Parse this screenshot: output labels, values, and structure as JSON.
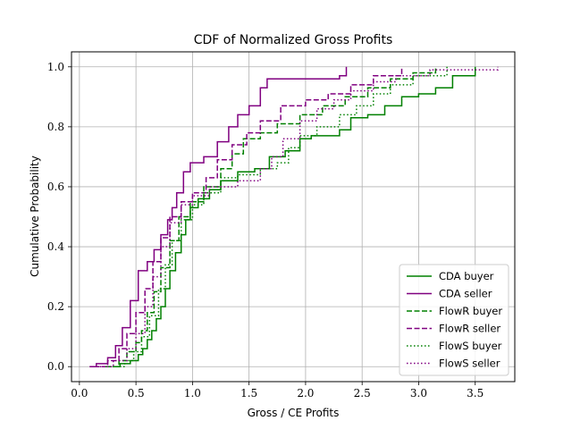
{
  "chart_data": {
    "type": "line",
    "step": true,
    "title": "CDF of Normalized Gross Profits",
    "xlabel": "Gross / CE Profits",
    "ylabel": "Cumulative Probability",
    "xlim": [
      -0.07,
      3.85
    ],
    "ylim": [
      -0.05,
      1.05
    ],
    "x_ticks": [
      0.0,
      0.5,
      1.0,
      1.5,
      2.0,
      2.5,
      3.0,
      3.5
    ],
    "x_tick_labels": [
      "0.0",
      "0.5",
      "1.0",
      "1.5",
      "2.0",
      "2.5",
      "3.0",
      "3.5"
    ],
    "y_ticks": [
      0.0,
      0.2,
      0.4,
      0.6,
      0.8,
      1.0
    ],
    "y_tick_labels": [
      "0.0",
      "0.2",
      "0.4",
      "0.6",
      "0.8",
      "1.0"
    ],
    "grid": true,
    "legend_position": "lower right",
    "series": [
      {
        "name": "CDA buyer",
        "color": "#008000",
        "dash": "solid",
        "points": [
          [
            0.33,
            0.0
          ],
          [
            0.36,
            0.01
          ],
          [
            0.45,
            0.02
          ],
          [
            0.52,
            0.04
          ],
          [
            0.56,
            0.06
          ],
          [
            0.6,
            0.09
          ],
          [
            0.64,
            0.12
          ],
          [
            0.68,
            0.16
          ],
          [
            0.72,
            0.2
          ],
          [
            0.76,
            0.26
          ],
          [
            0.8,
            0.32
          ],
          [
            0.85,
            0.38
          ],
          [
            0.9,
            0.44
          ],
          [
            0.94,
            0.49
          ],
          [
            0.98,
            0.53
          ],
          [
            1.05,
            0.56
          ],
          [
            1.15,
            0.59
          ],
          [
            1.25,
            0.62
          ],
          [
            1.4,
            0.65
          ],
          [
            1.55,
            0.66
          ],
          [
            1.68,
            0.7
          ],
          [
            1.82,
            0.72
          ],
          [
            1.95,
            0.76
          ],
          [
            2.05,
            0.77
          ],
          [
            2.3,
            0.79
          ],
          [
            2.4,
            0.83
          ],
          [
            2.55,
            0.84
          ],
          [
            2.7,
            0.87
          ],
          [
            2.85,
            0.9
          ],
          [
            3.0,
            0.91
          ],
          [
            3.15,
            0.93
          ],
          [
            3.3,
            0.97
          ],
          [
            3.5,
            1.0
          ]
        ]
      },
      {
        "name": "CDA seller",
        "color": "#800080",
        "dash": "solid",
        "points": [
          [
            0.09,
            0.0
          ],
          [
            0.15,
            0.01
          ],
          [
            0.25,
            0.03
          ],
          [
            0.32,
            0.07
          ],
          [
            0.38,
            0.13
          ],
          [
            0.45,
            0.22
          ],
          [
            0.52,
            0.32
          ],
          [
            0.6,
            0.35
          ],
          [
            0.66,
            0.39
          ],
          [
            0.72,
            0.44
          ],
          [
            0.78,
            0.49
          ],
          [
            0.82,
            0.53
          ],
          [
            0.86,
            0.58
          ],
          [
            0.92,
            0.65
          ],
          [
            0.98,
            0.68
          ],
          [
            1.1,
            0.7
          ],
          [
            1.22,
            0.75
          ],
          [
            1.32,
            0.8
          ],
          [
            1.4,
            0.84
          ],
          [
            1.5,
            0.87
          ],
          [
            1.6,
            0.93
          ],
          [
            1.66,
            0.96
          ],
          [
            2.3,
            0.97
          ],
          [
            2.36,
            1.0
          ]
        ]
      },
      {
        "name": "FlowR buyer",
        "color": "#008000",
        "dash": "dashed",
        "points": [
          [
            0.23,
            0.0
          ],
          [
            0.35,
            0.02
          ],
          [
            0.42,
            0.05
          ],
          [
            0.5,
            0.08
          ],
          [
            0.55,
            0.12
          ],
          [
            0.6,
            0.18
          ],
          [
            0.66,
            0.25
          ],
          [
            0.72,
            0.33
          ],
          [
            0.8,
            0.42
          ],
          [
            0.88,
            0.5
          ],
          [
            0.98,
            0.55
          ],
          [
            1.1,
            0.6
          ],
          [
            1.25,
            0.66
          ],
          [
            1.35,
            0.71
          ],
          [
            1.45,
            0.76
          ],
          [
            1.6,
            0.78
          ],
          [
            1.75,
            0.81
          ],
          [
            1.95,
            0.84
          ],
          [
            2.15,
            0.87
          ],
          [
            2.35,
            0.9
          ],
          [
            2.55,
            0.93
          ],
          [
            2.75,
            0.96
          ],
          [
            2.95,
            0.98
          ],
          [
            3.15,
            1.0
          ]
        ]
      },
      {
        "name": "FlowR seller",
        "color": "#800080",
        "dash": "dashed",
        "points": [
          [
            0.13,
            0.0
          ],
          [
            0.25,
            0.02
          ],
          [
            0.35,
            0.06
          ],
          [
            0.42,
            0.11
          ],
          [
            0.5,
            0.18
          ],
          [
            0.58,
            0.26
          ],
          [
            0.65,
            0.35
          ],
          [
            0.72,
            0.43
          ],
          [
            0.8,
            0.5
          ],
          [
            0.9,
            0.55
          ],
          [
            1.0,
            0.58
          ],
          [
            1.12,
            0.63
          ],
          [
            1.22,
            0.69
          ],
          [
            1.35,
            0.74
          ],
          [
            1.48,
            0.78
          ],
          [
            1.6,
            0.82
          ],
          [
            1.78,
            0.87
          ],
          [
            2.0,
            0.89
          ],
          [
            2.2,
            0.91
          ],
          [
            2.4,
            0.94
          ],
          [
            2.6,
            0.97
          ],
          [
            2.85,
            1.0
          ]
        ]
      },
      {
        "name": "FlowS buyer",
        "color": "#008000",
        "dash": "dotted",
        "points": [
          [
            0.23,
            0.0
          ],
          [
            0.4,
            0.02
          ],
          [
            0.48,
            0.05
          ],
          [
            0.55,
            0.1
          ],
          [
            0.62,
            0.17
          ],
          [
            0.7,
            0.26
          ],
          [
            0.76,
            0.34
          ],
          [
            0.82,
            0.42
          ],
          [
            0.9,
            0.49
          ],
          [
            1.0,
            0.54
          ],
          [
            1.1,
            0.58
          ],
          [
            1.25,
            0.63
          ],
          [
            1.4,
            0.64
          ],
          [
            1.6,
            0.66
          ],
          [
            1.75,
            0.68
          ],
          [
            1.85,
            0.73
          ],
          [
            1.95,
            0.77
          ],
          [
            2.1,
            0.8
          ],
          [
            2.3,
            0.84
          ],
          [
            2.45,
            0.87
          ],
          [
            2.6,
            0.91
          ],
          [
            2.75,
            0.94
          ],
          [
            2.95,
            0.97
          ],
          [
            3.25,
            1.0
          ]
        ]
      },
      {
        "name": "FlowS seller",
        "color": "#800080",
        "dash": "dotted",
        "points": [
          [
            0.15,
            0.0
          ],
          [
            0.3,
            0.02
          ],
          [
            0.42,
            0.06
          ],
          [
            0.5,
            0.11
          ],
          [
            0.58,
            0.2
          ],
          [
            0.65,
            0.3
          ],
          [
            0.72,
            0.4
          ],
          [
            0.8,
            0.48
          ],
          [
            0.9,
            0.54
          ],
          [
            1.0,
            0.57
          ],
          [
            1.15,
            0.6
          ],
          [
            1.4,
            0.62
          ],
          [
            1.6,
            0.66
          ],
          [
            1.7,
            0.7
          ],
          [
            1.8,
            0.76
          ],
          [
            1.95,
            0.82
          ],
          [
            2.1,
            0.86
          ],
          [
            2.25,
            0.89
          ],
          [
            2.4,
            0.92
          ],
          [
            2.6,
            0.95
          ],
          [
            2.8,
            0.97
          ],
          [
            3.1,
            0.99
          ],
          [
            3.7,
            1.0
          ]
        ]
      }
    ]
  }
}
